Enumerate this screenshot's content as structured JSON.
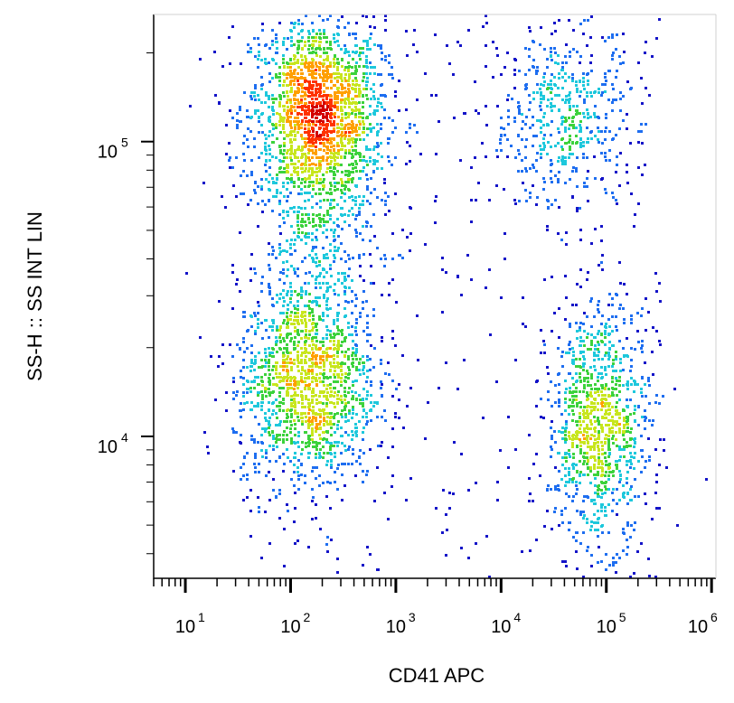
{
  "chart_data": {
    "type": "scatter",
    "style": "density-colored dot plot",
    "xlabel": "CD41 APC",
    "ylabel": "SS-H :: SS INT LIN",
    "x_scale": "log",
    "y_scale": "log",
    "xlim": [
      5,
      1100000
    ],
    "ylim": [
      3300,
      270000
    ],
    "x_ticks": [
      {
        "base": "10",
        "exp": "1",
        "value": 10
      },
      {
        "base": "10",
        "exp": "2",
        "value": 100
      },
      {
        "base": "10",
        "exp": "3",
        "value": 1000
      },
      {
        "base": "10",
        "exp": "4",
        "value": 10000
      },
      {
        "base": "10",
        "exp": "5",
        "value": 100000
      },
      {
        "base": "10",
        "exp": "6",
        "value": 1000000
      }
    ],
    "y_ticks": [
      {
        "base": "10",
        "exp": "4",
        "value": 10000
      },
      {
        "base": "10",
        "exp": "5",
        "value": 100000
      }
    ],
    "density_colors": [
      "#1414c8",
      "#1e6ef0",
      "#1ec8dc",
      "#3cd23c",
      "#c8e61e",
      "#ffa000",
      "#ff3200",
      "#d20000"
    ],
    "populations": [
      {
        "x_center": 180,
        "y_center": 125000,
        "x_spread_decades": 0.32,
        "y_spread_decades": 0.16,
        "weight": 0.32
      },
      {
        "x_center": 140,
        "y_center": 15000,
        "x_spread_decades": 0.34,
        "y_spread_decades": 0.18,
        "weight": 0.26
      },
      {
        "x_center": 85000,
        "y_center": 11000,
        "x_spread_decades": 0.24,
        "y_spread_decades": 0.2,
        "weight": 0.2
      },
      {
        "x_center": 40000,
        "y_center": 120000,
        "x_spread_decades": 0.35,
        "y_spread_decades": 0.16,
        "weight": 0.1
      },
      {
        "x_center": 200,
        "y_center": 50000,
        "x_spread_decades": 0.3,
        "y_spread_decades": 0.3,
        "weight": 0.12
      }
    ]
  }
}
